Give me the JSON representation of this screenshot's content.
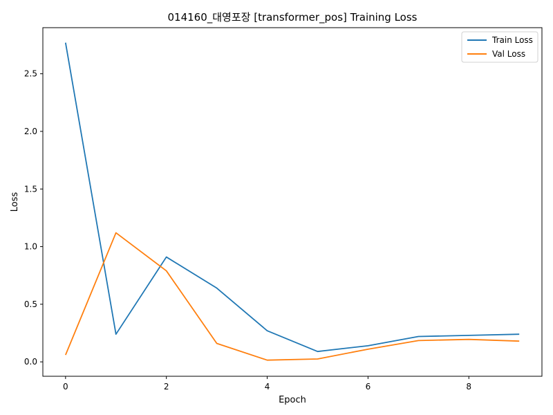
{
  "chart_data": {
    "type": "line",
    "title": "014160_대영포장 [transformer_pos] Training Loss",
    "xlabel": "Epoch",
    "ylabel": "Loss",
    "x": [
      0,
      1,
      2,
      3,
      4,
      5,
      6,
      7,
      8,
      9
    ],
    "xlim": [
      -0.45,
      9.45
    ],
    "ylim": [
      -0.125,
      2.9
    ],
    "x_ticks": [
      0,
      2,
      4,
      6,
      8
    ],
    "x_tick_labels": [
      "0",
      "2",
      "4",
      "6",
      "8"
    ],
    "y_ticks": [
      0.0,
      0.5,
      1.0,
      1.5,
      2.0,
      2.5
    ],
    "y_tick_labels": [
      "0.0",
      "0.5",
      "1.0",
      "1.5",
      "2.0",
      "2.5"
    ],
    "grid": false,
    "legend_position": "top-right",
    "series": [
      {
        "name": "Train Loss",
        "color": "#1f77b4",
        "values": [
          2.77,
          0.24,
          0.91,
          0.64,
          0.27,
          0.09,
          0.14,
          0.22,
          0.23,
          0.24
        ]
      },
      {
        "name": "Val Loss",
        "color": "#ff7f0e",
        "values": [
          0.06,
          1.12,
          0.79,
          0.16,
          0.015,
          0.025,
          0.11,
          0.185,
          0.195,
          0.18
        ]
      }
    ]
  }
}
